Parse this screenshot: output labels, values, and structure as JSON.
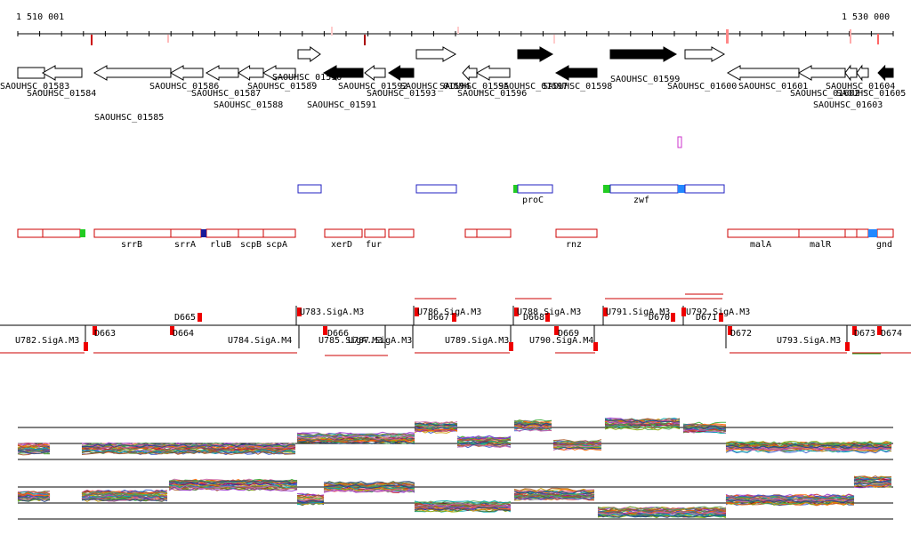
{
  "ruler": {
    "start_label": "1 510 001",
    "end_label": "1 530 000"
  },
  "colors": {
    "gene_outline": "#000000",
    "gene_filled": "#000000",
    "operon_outline": "#cc0000",
    "uorf_outline": "#2020c0",
    "promoter_green": "#22cc22",
    "terminator_blue": "#2288ff",
    "rnaseq_red": "#cc0000",
    "sigma_line": "#cc0000"
  },
  "genes": [
    {
      "label": "SAOUHSC_01583",
      "row": 0,
      "filled": false,
      "strand": 1,
      "label_row": 0
    },
    {
      "label": "SAOUHSC_01584",
      "row": 0,
      "filled": false,
      "strand": -1,
      "label_row": 1
    },
    {
      "label": "SAOUHSC_01585",
      "row": 0,
      "filled": false,
      "strand": -1,
      "label_row": 2
    },
    {
      "label": "SAOUHSC_01586",
      "row": 0,
      "filled": false,
      "strand": -1,
      "label_row": 0
    },
    {
      "label": "SAOUHSC_01587",
      "row": 0,
      "filled": false,
      "strand": -1,
      "label_row": 1
    },
    {
      "label": "SAOUHSC_01588",
      "row": 0,
      "filled": false,
      "strand": -1,
      "label_row": 2
    },
    {
      "label": "SAOUHSC_01589",
      "row": 0,
      "filled": false,
      "strand": -1,
      "label_row": 0
    },
    {
      "label": "SAOUHSC_01590",
      "row": 1,
      "filled": false,
      "strand": 1,
      "label_row": -1
    },
    {
      "label": "SAOUHSC_01591",
      "row": 0,
      "filled": true,
      "strand": -1,
      "label_row": 2
    },
    {
      "label": "SAOUHSC_01592",
      "row": 0,
      "filled": false,
      "strand": -1,
      "label_row": 0
    },
    {
      "label": "SAOUHSC_01593",
      "row": 0,
      "filled": true,
      "strand": -1,
      "label_row": 1
    },
    {
      "label": "SAOUHSC_01594",
      "row": 1,
      "filled": false,
      "strand": 1,
      "label_row": 0
    },
    {
      "label": "SAOUHSC_01595",
      "row": 0,
      "filled": false,
      "strand": -1,
      "label_row": 0
    },
    {
      "label": "SAOUHSC_01596",
      "row": 0,
      "filled": false,
      "strand": -1,
      "label_row": 1
    },
    {
      "label": "SAOUHSC_01597",
      "row": 1,
      "filled": true,
      "strand": 1,
      "label_row": 0
    },
    {
      "label": "SAOUHSC_01598",
      "row": 0,
      "filled": true,
      "strand": -1,
      "label_row": 0
    },
    {
      "label": "SAOUHSC_01599",
      "row": 1,
      "filled": true,
      "strand": 1,
      "label_row": 0
    },
    {
      "label": "SAOUHSC_01600",
      "row": 1,
      "filled": false,
      "strand": 1,
      "label_row": 0
    },
    {
      "label": "SAOUHSC_01601",
      "row": 0,
      "filled": false,
      "strand": -1,
      "label_row": 0
    },
    {
      "label": "SAOUHSC_01602",
      "row": 0,
      "filled": false,
      "strand": -1,
      "label_row": 1
    },
    {
      "label": "SAOUHSC_01603",
      "row": 0,
      "filled": false,
      "strand": -1,
      "label_row": 2
    },
    {
      "label": "SAOUHSC_01604",
      "row": 0,
      "filled": false,
      "strand": -1,
      "label_row": 0
    },
    {
      "label": "SAOUHSC_01605",
      "row": 0,
      "filled": true,
      "strand": -1,
      "label_row": 1
    }
  ],
  "uorfs": [
    {
      "label": ""
    },
    {
      "label": ""
    },
    {
      "label": "proC"
    },
    {
      "label": "zwf"
    }
  ],
  "operon_genes": [
    "srrB",
    "srrA",
    "rluB",
    "scpB",
    "scpA",
    "xerD",
    "fur",
    "rnz",
    "malA",
    "malR",
    "gnd"
  ],
  "sigma_labels_top": [
    "U783.SigA.M3",
    "U786.SigA.M3",
    "U788.SigA.M3",
    "U791.SigA.M3",
    "U792.SigA.M3"
  ],
  "sigma_labels_bottom": [
    "U782.SigA.M3",
    "U784.SigA.M4",
    "U785.SigA.M3",
    "U787.SigA.M3",
    "U789.SigA.M3",
    "U790.SigA.M4",
    "U793.SigA.M3"
  ],
  "down_labels": [
    "D663",
    "D664",
    "D665",
    "D666",
    "D667",
    "D668",
    "D669",
    "D670",
    "D671",
    "D672",
    "D673",
    "D674"
  ]
}
